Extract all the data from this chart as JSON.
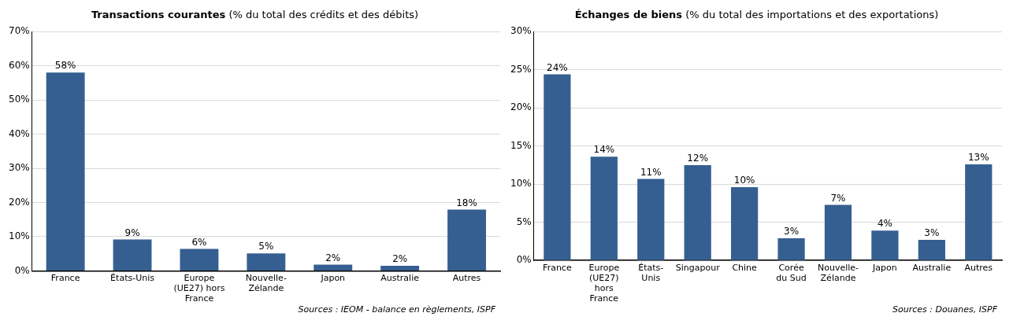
{
  "chart_data": [
    {
      "type": "bar",
      "title": "Transactions courantes",
      "subtitle": "(% du total des crédits et des débits)",
      "categories": [
        "France",
        "États-Unis",
        "Europe (UE27) hors France",
        "Nouvelle-Zélande",
        "Japon",
        "Australie",
        "Autres"
      ],
      "values": [
        58,
        9.2,
        6.4,
        5.1,
        1.8,
        1.5,
        17.9
      ],
      "value_labels": [
        "58%",
        "9%",
        "6%",
        "5%",
        "2%",
        "2%",
        "18%"
      ],
      "color": "#365f91",
      "ylim": [
        0,
        70
      ],
      "yticks": [
        {
          "value": 0,
          "label": "0%"
        },
        {
          "value": 10,
          "label": "10%"
        },
        {
          "value": 20,
          "label": "20%"
        },
        {
          "value": 30,
          "label": "30%"
        },
        {
          "value": 40,
          "label": "40%"
        },
        {
          "value": 50,
          "label": "50%"
        },
        {
          "value": 60,
          "label": "60%"
        },
        {
          "value": 70,
          "label": "70%"
        }
      ],
      "grid": "y",
      "annotations": [
        "Sources : IEOM - balance en règlements, ISPF"
      ]
    },
    {
      "type": "bar",
      "title": "Échanges de biens",
      "subtitle": "(% du total des importations et des exportations)",
      "categories": [
        "France",
        "Europe (UE27) hors France",
        "États-Unis",
        "Singapour",
        "Chine",
        "Corée du Sud",
        "Nouvelle-Zélande",
        "Japon",
        "Australie",
        "Autres"
      ],
      "values": [
        24.4,
        13.6,
        10.7,
        12.5,
        9.6,
        2.9,
        7.3,
        3.9,
        2.7,
        12.6
      ],
      "value_labels": [
        "24%",
        "14%",
        "11%",
        "12%",
        "10%",
        "3%",
        "7%",
        "4%",
        "3%",
        "13%"
      ],
      "color": "#365f91",
      "ylim": [
        0,
        30
      ],
      "yticks": [
        {
          "value": 0,
          "label": "0%"
        },
        {
          "value": 5,
          "label": "5%"
        },
        {
          "value": 10,
          "label": "10%"
        },
        {
          "value": 15,
          "label": "15%"
        },
        {
          "value": 20,
          "label": "20%"
        },
        {
          "value": 25,
          "label": "25%"
        },
        {
          "value": 30,
          "label": "30%"
        }
      ],
      "grid": "y",
      "annotations": [
        "Sources : Douanes, ISPF"
      ]
    }
  ]
}
